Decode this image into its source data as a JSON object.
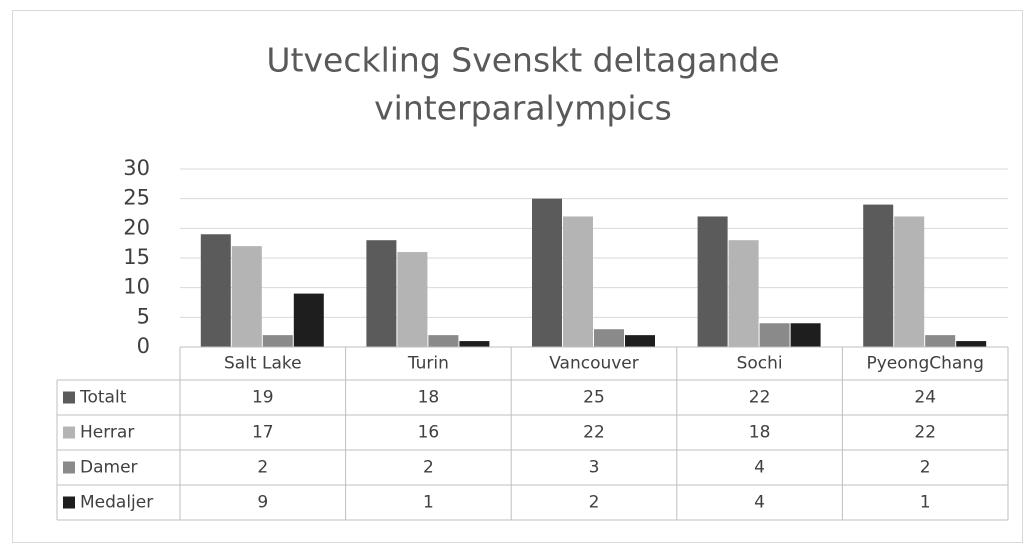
{
  "chart_data": {
    "type": "bar",
    "title": [
      "Utveckling Svenskt deltagande",
      "vinterparalympics"
    ],
    "categories": [
      "Salt Lake",
      "Turin",
      "Vancouver",
      "Sochi",
      "PyeongChang"
    ],
    "series": [
      {
        "name": "Totalt",
        "color": "#5b5b5b",
        "values": [
          19,
          18,
          25,
          22,
          24
        ]
      },
      {
        "name": "Herrar",
        "color": "#b4b4b4",
        "values": [
          17,
          16,
          22,
          18,
          22
        ]
      },
      {
        "name": "Damer",
        "color": "#8a8a8a",
        "values": [
          2,
          2,
          3,
          4,
          2
        ]
      },
      {
        "name": "Medaljer",
        "color": "#1e1e1e",
        "values": [
          9,
          1,
          2,
          4,
          1
        ]
      }
    ],
    "ylim": [
      0,
      30
    ],
    "yticks": [
      0,
      5,
      10,
      15,
      20,
      25,
      30
    ],
    "grid": true
  }
}
